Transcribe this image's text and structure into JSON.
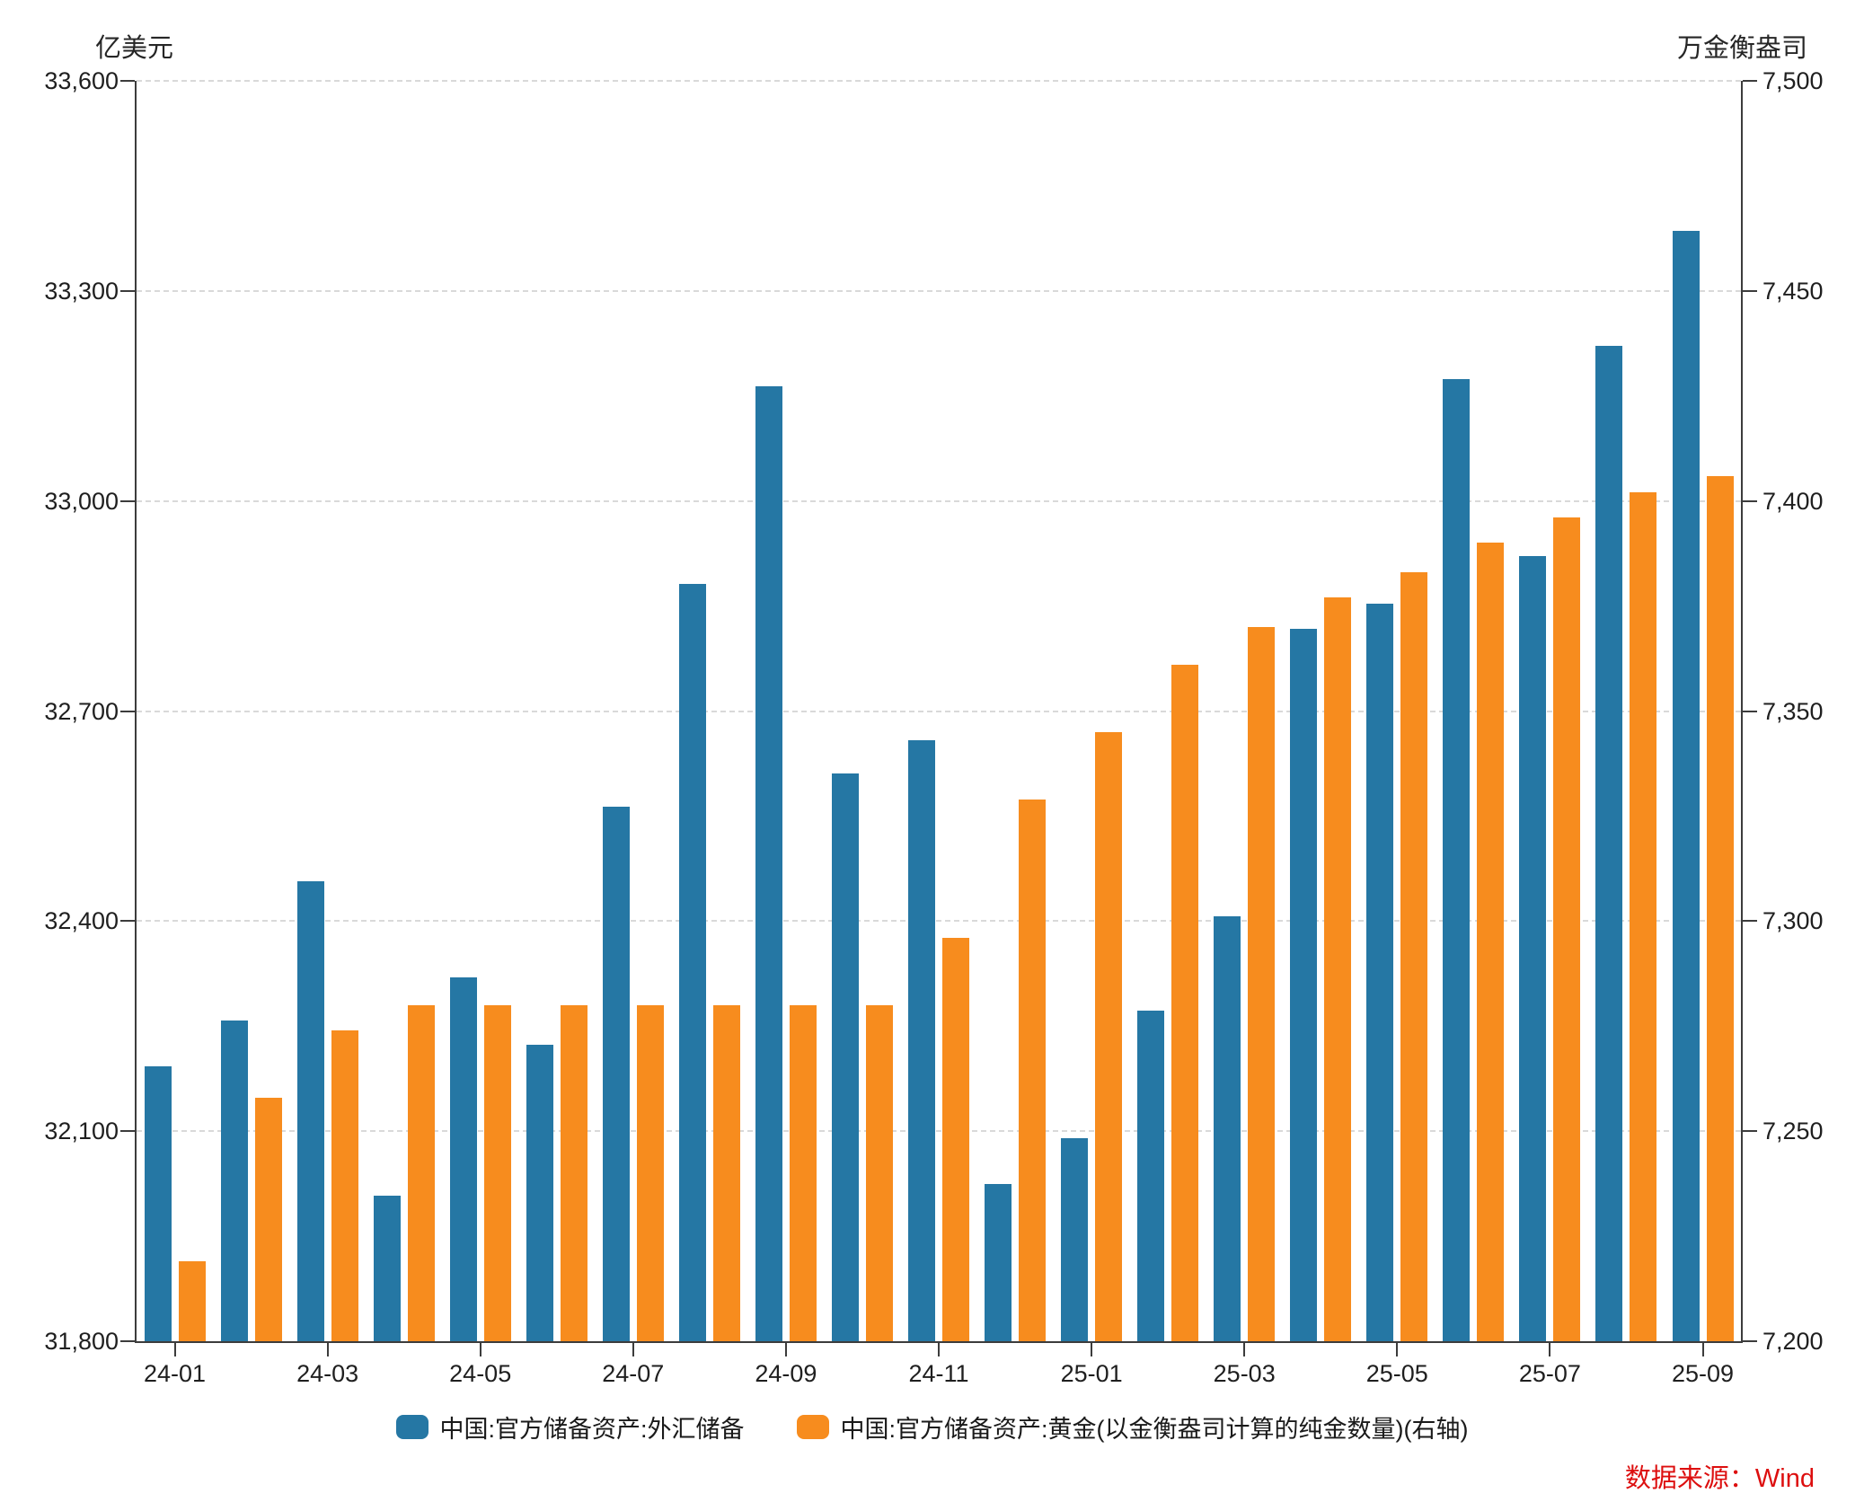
{
  "source_note": "数据来源：Wind",
  "source_color": "#dd0f0f",
  "chart_data": {
    "type": "bar",
    "title": "",
    "categories": [
      "24-01",
      "24-02",
      "24-03",
      "24-04",
      "24-05",
      "24-06",
      "24-07",
      "24-08",
      "24-09",
      "24-10",
      "24-11",
      "24-12",
      "25-01",
      "25-02",
      "25-03",
      "25-04",
      "25-05",
      "25-06",
      "25-07",
      "25-08",
      "25-09"
    ],
    "x_tick_every": 2,
    "left_axis": {
      "title": "亿美元",
      "min": 31800,
      "max": 33600,
      "ticks": [
        33600,
        33300,
        33000,
        32700,
        32400,
        32100,
        31800
      ]
    },
    "right_axis": {
      "title": "万金衡盎司",
      "min": 7200,
      "max": 7500,
      "ticks": [
        7500,
        7450,
        7400,
        7350,
        7300,
        7250,
        7200
      ]
    },
    "series": [
      {
        "name": "中国:官方储备资产:外汇储备",
        "axis": "left",
        "color": "#2577A4",
        "values": [
          32193,
          32258,
          32457,
          32008,
          32320,
          32224,
          32564,
          32882,
          33164,
          32611,
          32659,
          32024,
          32090,
          32272,
          32407,
          32817,
          32853,
          33174,
          32922,
          33222,
          33386
        ]
      },
      {
        "name": "中国:官方储备资产:黄金(以金衡盎司计算的纯金数量)(右轴)",
        "axis": "right",
        "color": "#F78C1E",
        "values": [
          7219,
          7258,
          7274,
          7280,
          7280,
          7280,
          7280,
          7280,
          7280,
          7280,
          7296,
          7329,
          7345,
          7361,
          7370,
          7377,
          7383,
          7390,
          7396,
          7402,
          7406
        ]
      }
    ],
    "grid": {
      "style": "dashed",
      "color": "#d9d9d9"
    },
    "legend_position": "bottom"
  }
}
